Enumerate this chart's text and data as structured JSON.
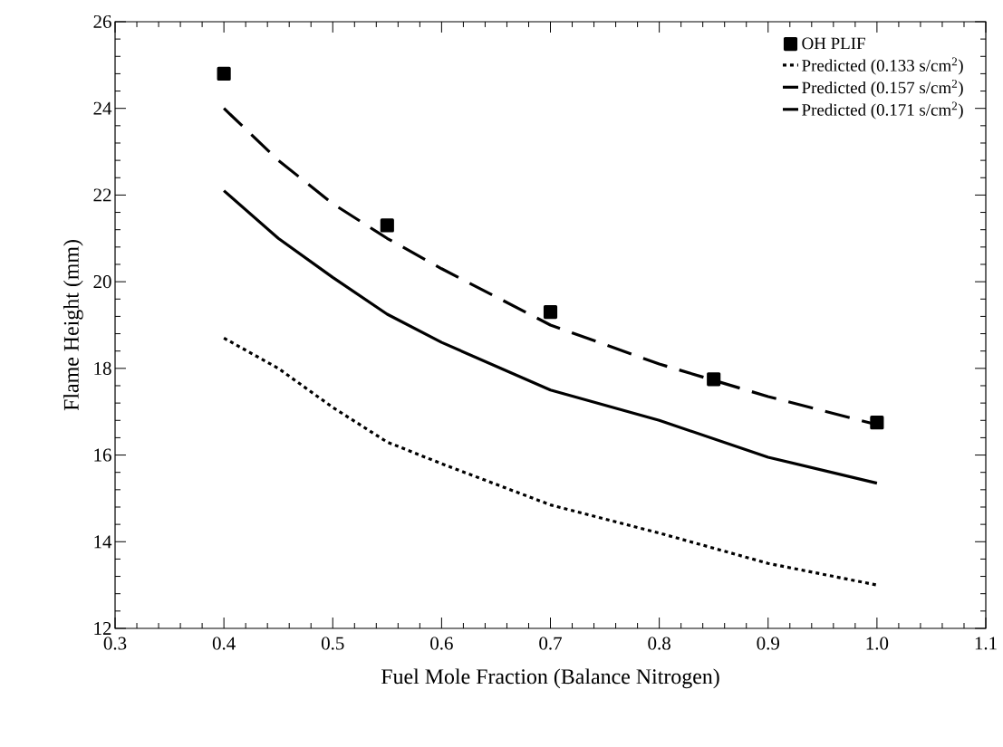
{
  "chart_data": {
    "type": "line",
    "xlabel": "Fuel Mole Fraction (Balance Nitrogen)",
    "ylabel": "Flame Height (mm)",
    "xlim": [
      0.3,
      1.1
    ],
    "ylim": [
      12,
      26
    ],
    "xticks": [
      0.3,
      0.4,
      0.5,
      0.6,
      0.7,
      0.8,
      0.9,
      {
        "value": 1,
        "label": "1.0"
      },
      1.1
    ],
    "yticks": [
      12,
      14,
      16,
      18,
      20,
      22,
      24,
      26
    ],
    "grid": false,
    "legend": "top right",
    "series": [
      {
        "name": "OH PLIF",
        "type": "scatter",
        "marker": "square",
        "color": "#000000",
        "x": [
          0.4,
          0.55,
          0.7,
          0.85,
          1.0
        ],
        "values": [
          24.8,
          21.3,
          19.3,
          17.75,
          16.75
        ]
      },
      {
        "name": "Predicted (0.133 s/cm$^{2}$)",
        "line_style": "dotted",
        "marker": "none",
        "color": "#000000",
        "x": [
          0.4,
          0.45,
          0.5,
          0.55,
          0.6,
          0.7,
          0.8,
          0.9,
          1.0
        ],
        "values": [
          18.7,
          18.0,
          17.1,
          16.3,
          15.8,
          14.85,
          14.2,
          13.5,
          13.0
        ]
      },
      {
        "name": "Predicted (0.157 s/cm$^{2}$)",
        "line_style": "solid",
        "marker": "none",
        "color": "#000000",
        "x": [
          0.4,
          0.45,
          0.5,
          0.55,
          0.6,
          0.7,
          0.8,
          0.9,
          1.0
        ],
        "values": [
          22.1,
          21.0,
          20.1,
          19.25,
          18.6,
          17.5,
          16.8,
          15.95,
          15.35
        ]
      },
      {
        "name": "Predicted (0.171 s/cm$^{2}$)",
        "line_style": "dashed",
        "marker": "none",
        "color": "#000000",
        "x": [
          0.4,
          0.45,
          0.5,
          0.55,
          0.6,
          0.7,
          0.8,
          0.9,
          1.0
        ],
        "values": [
          24.0,
          22.8,
          21.8,
          21.0,
          20.3,
          19.0,
          18.1,
          17.35,
          16.7
        ]
      }
    ]
  }
}
